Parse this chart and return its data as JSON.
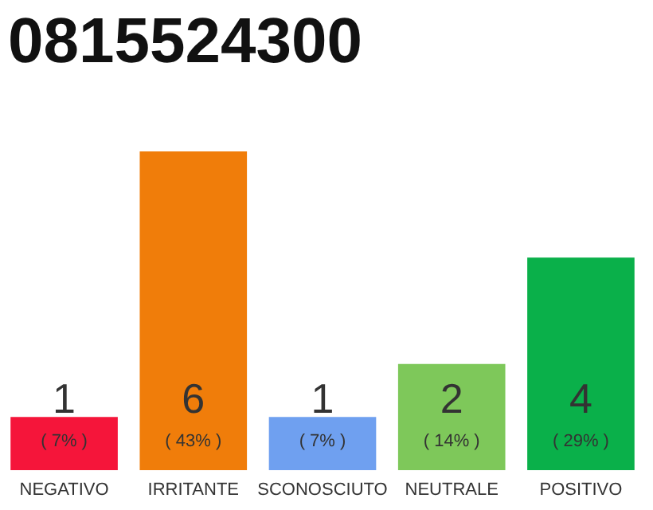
{
  "chart_data": {
    "type": "bar",
    "title": "0815524300",
    "categories": [
      "NEGATIVO",
      "IRRITANTE",
      "SCONOSCIUTO",
      "NEUTRALE",
      "POSITIVO"
    ],
    "values": [
      1,
      6,
      1,
      2,
      4
    ],
    "colors": [
      "#f5153a",
      "#f07d0a",
      "#6fa0f0",
      "#7ec85a",
      "#0ab04a"
    ],
    "ylim": [
      0,
      6
    ],
    "tick_labels": "x",
    "data_labels": true,
    "annotations": [
      "( 7% )",
      "( 43% )",
      "( 7% )",
      "( 14% )",
      "( 29% )"
    ]
  }
}
